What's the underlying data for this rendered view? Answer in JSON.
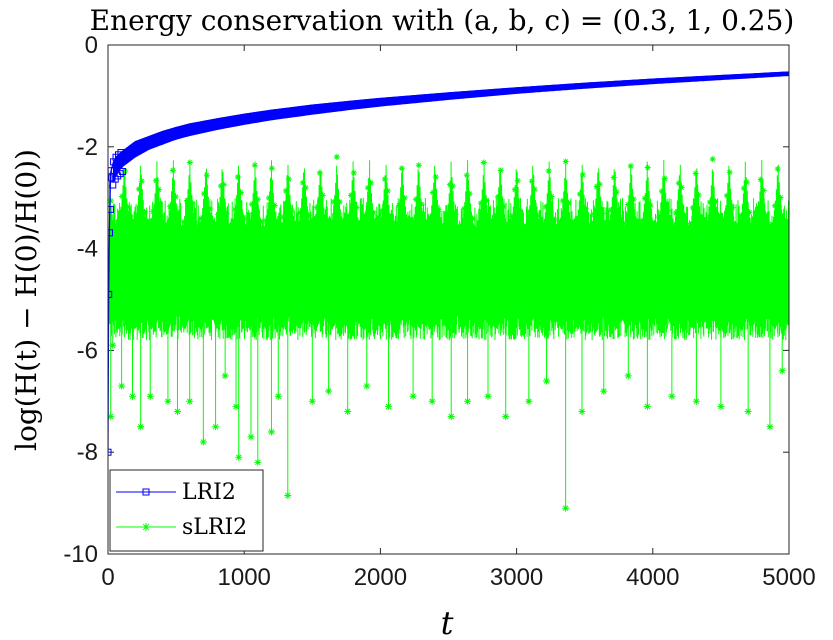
{
  "chart_data": {
    "type": "line",
    "title": "Energy conservation with (a, b, c) = (0.3, 1, 0.25)",
    "xlabel": "t",
    "ylabel": "log(H(t) − H(0)/H(0))",
    "xlim": [
      0,
      5000
    ],
    "ylim": [
      -10,
      0
    ],
    "xticks": [
      0,
      1000,
      2000,
      3000,
      4000,
      5000
    ],
    "yticks": [
      0,
      -2,
      -4,
      -6,
      -8,
      -10
    ],
    "legend_position": "bottom-left",
    "series": [
      {
        "name": "LRI2",
        "color": "#0000ff",
        "marker": "square",
        "x": [
          0,
          5,
          10,
          20,
          40,
          60,
          100,
          150,
          200,
          300,
          400,
          500,
          600,
          800,
          1000,
          1200,
          1500,
          1800,
          2000,
          2500,
          3000,
          3500,
          4000,
          4500,
          5000
        ],
        "y": [
          -8.0,
          -4.9,
          -3.6,
          -2.5,
          -2.3,
          -2.2,
          -2.1,
          -2.0,
          -1.9,
          -1.8,
          -1.7,
          -1.62,
          -1.55,
          -1.45,
          -1.36,
          -1.28,
          -1.18,
          -1.1,
          -1.05,
          -0.94,
          -0.84,
          -0.75,
          -0.67,
          -0.6,
          -0.53
        ],
        "band_lower": [
          -8.0,
          -4.9,
          -3.8,
          -3.0,
          -2.7,
          -2.55,
          -2.4,
          -2.3,
          -2.2,
          -2.05,
          -1.95,
          -1.85,
          -1.78,
          -1.66,
          -1.56,
          -1.47,
          -1.36,
          -1.26,
          -1.2,
          -1.07,
          -0.95,
          -0.85,
          -0.76,
          -0.68,
          -0.6
        ]
      },
      {
        "name": "sLRI2",
        "color": "#00ff00",
        "marker": "star",
        "envelope_upper": -2.2,
        "band_top": -3.0,
        "band_bottom": -5.8,
        "spikes": [
          {
            "x": 20,
            "y": -7.3
          },
          {
            "x": 35,
            "y": -5.9
          },
          {
            "x": 100,
            "y": -6.7
          },
          {
            "x": 180,
            "y": -6.9
          },
          {
            "x": 240,
            "y": -7.5
          },
          {
            "x": 310,
            "y": -6.9
          },
          {
            "x": 440,
            "y": -7.0
          },
          {
            "x": 510,
            "y": -7.2
          },
          {
            "x": 600,
            "y": -7.0
          },
          {
            "x": 700,
            "y": -7.8
          },
          {
            "x": 790,
            "y": -7.5
          },
          {
            "x": 860,
            "y": -6.5
          },
          {
            "x": 940,
            "y": -7.1
          },
          {
            "x": 960,
            "y": -8.1
          },
          {
            "x": 1050,
            "y": -7.7
          },
          {
            "x": 1100,
            "y": -8.2
          },
          {
            "x": 1200,
            "y": -7.6
          },
          {
            "x": 1250,
            "y": -6.9
          },
          {
            "x": 1320,
            "y": -8.85
          },
          {
            "x": 1500,
            "y": -7.0
          },
          {
            "x": 1620,
            "y": -6.8
          },
          {
            "x": 1760,
            "y": -7.2
          },
          {
            "x": 1900,
            "y": -6.7
          },
          {
            "x": 2060,
            "y": -7.1
          },
          {
            "x": 2240,
            "y": -6.9
          },
          {
            "x": 2380,
            "y": -7.0
          },
          {
            "x": 2520,
            "y": -7.3
          },
          {
            "x": 2640,
            "y": -7.0
          },
          {
            "x": 2790,
            "y": -6.9
          },
          {
            "x": 2920,
            "y": -7.3
          },
          {
            "x": 3090,
            "y": -7.0
          },
          {
            "x": 3220,
            "y": -6.6
          },
          {
            "x": 3360,
            "y": -9.1
          },
          {
            "x": 3480,
            "y": -7.2
          },
          {
            "x": 3640,
            "y": -6.8
          },
          {
            "x": 3820,
            "y": -6.5
          },
          {
            "x": 3960,
            "y": -7.1
          },
          {
            "x": 4140,
            "y": -6.9
          },
          {
            "x": 4320,
            "y": -7.0
          },
          {
            "x": 4500,
            "y": -7.1
          },
          {
            "x": 4700,
            "y": -7.2
          },
          {
            "x": 4860,
            "y": -7.5
          },
          {
            "x": 4950,
            "y": -6.4
          }
        ]
      }
    ]
  }
}
